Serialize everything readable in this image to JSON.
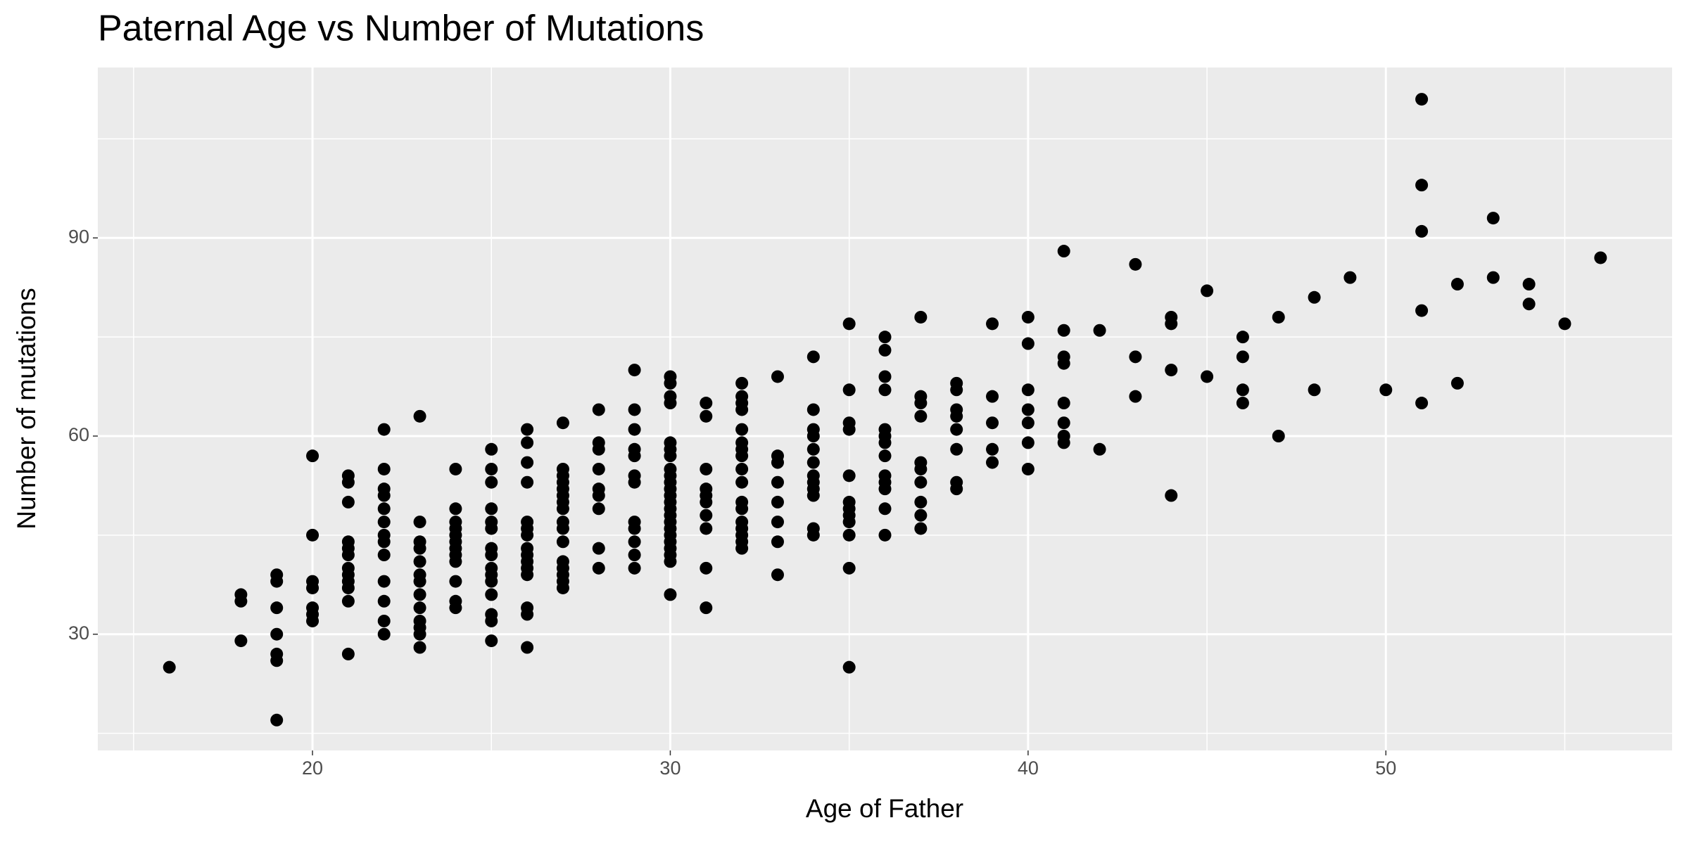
{
  "chart_data": {
    "type": "scatter",
    "title": "Paternal Age vs Number of Mutations",
    "x_label": "Age of Father",
    "y_label": "Number of mutations",
    "series": [
      {
        "color": "#000000",
        "x": [
          16,
          18,
          18,
          18,
          19,
          19,
          19,
          19,
          19,
          19,
          19,
          20,
          20,
          20,
          20,
          20,
          20,
          20,
          21,
          21,
          21,
          21,
          21,
          21,
          21,
          21,
          21,
          21,
          21,
          21,
          22,
          22,
          22,
          22,
          22,
          22,
          22,
          22,
          22,
          22,
          22,
          22,
          22,
          23,
          23,
          23,
          23,
          23,
          23,
          23,
          23,
          23,
          23,
          23,
          23,
          23,
          24,
          24,
          24,
          24,
          24,
          24,
          24,
          24,
          24,
          24,
          24,
          24,
          25,
          25,
          25,
          25,
          25,
          25,
          25,
          25,
          25,
          25,
          25,
          25,
          25,
          25,
          25,
          26,
          26,
          26,
          26,
          26,
          26,
          26,
          26,
          26,
          26,
          26,
          26,
          26,
          26,
          26,
          27,
          27,
          27,
          27,
          27,
          27,
          27,
          27,
          27,
          27,
          27,
          27,
          27,
          27,
          27,
          27,
          28,
          28,
          28,
          28,
          28,
          28,
          28,
          28,
          28,
          29,
          29,
          29,
          29,
          29,
          29,
          29,
          29,
          29,
          29,
          29,
          29,
          30,
          30,
          30,
          30,
          30,
          30,
          30,
          30,
          30,
          30,
          30,
          30,
          30,
          30,
          30,
          30,
          30,
          30,
          30,
          30,
          30,
          30,
          30,
          31,
          31,
          31,
          31,
          31,
          31,
          31,
          31,
          31,
          31,
          32,
          32,
          32,
          32,
          32,
          32,
          32,
          32,
          32,
          32,
          32,
          32,
          32,
          32,
          32,
          32,
          32,
          33,
          33,
          33,
          33,
          33,
          33,
          33,
          33,
          34,
          34,
          34,
          34,
          34,
          34,
          34,
          34,
          34,
          34,
          34,
          34,
          35,
          35,
          35,
          35,
          35,
          35,
          35,
          35,
          35,
          35,
          35,
          35,
          36,
          36,
          36,
          36,
          36,
          36,
          36,
          36,
          36,
          36,
          36,
          36,
          36,
          37,
          37,
          37,
          37,
          37,
          37,
          37,
          37,
          37,
          37,
          38,
          38,
          38,
          38,
          38,
          38,
          38,
          38,
          39,
          39,
          39,
          39,
          39,
          40,
          40,
          40,
          40,
          40,
          40,
          40,
          41,
          41,
          41,
          41,
          41,
          41,
          41,
          41,
          42,
          42,
          43,
          43,
          43,
          44,
          44,
          44,
          44,
          45,
          45,
          46,
          46,
          46,
          46,
          47,
          47,
          48,
          48,
          49,
          50,
          51,
          51,
          51,
          51,
          51,
          52,
          52,
          53,
          53,
          54,
          54,
          55,
          56
        ],
        "values": [
          25,
          36,
          35,
          29,
          39,
          38,
          34,
          30,
          27,
          26,
          17,
          57,
          45,
          38,
          37,
          34,
          33,
          32,
          54,
          53,
          50,
          44,
          43,
          42,
          40,
          39,
          38,
          37,
          35,
          27,
          61,
          55,
          52,
          51,
          49,
          47,
          45,
          44,
          42,
          38,
          35,
          32,
          30,
          63,
          47,
          44,
          43,
          41,
          39,
          38,
          36,
          34,
          32,
          31,
          30,
          28,
          55,
          49,
          47,
          46,
          45,
          44,
          43,
          42,
          41,
          38,
          35,
          34,
          58,
          55,
          53,
          49,
          47,
          46,
          43,
          42,
          40,
          39,
          38,
          36,
          33,
          32,
          29,
          61,
          59,
          56,
          53,
          47,
          46,
          45,
          43,
          42,
          41,
          40,
          39,
          34,
          33,
          28,
          62,
          55,
          54,
          53,
          52,
          51,
          50,
          49,
          47,
          46,
          44,
          41,
          40,
          39,
          38,
          37,
          64,
          59,
          58,
          55,
          52,
          51,
          49,
          43,
          40,
          70,
          64,
          61,
          58,
          57,
          54,
          53,
          47,
          46,
          44,
          42,
          40,
          69,
          68,
          66,
          65,
          59,
          58,
          57,
          55,
          54,
          53,
          52,
          51,
          50,
          49,
          48,
          47,
          46,
          45,
          44,
          43,
          42,
          41,
          36,
          65,
          63,
          55,
          52,
          51,
          50,
          48,
          46,
          40,
          34,
          68,
          66,
          65,
          64,
          61,
          59,
          58,
          57,
          55,
          53,
          50,
          49,
          47,
          46,
          45,
          44,
          43,
          69,
          57,
          56,
          53,
          50,
          47,
          44,
          39,
          72,
          64,
          61,
          60,
          58,
          56,
          54,
          53,
          52,
          51,
          46,
          45,
          77,
          67,
          62,
          61,
          54,
          50,
          49,
          48,
          47,
          45,
          40,
          25,
          75,
          73,
          69,
          67,
          61,
          60,
          59,
          57,
          54,
          53,
          52,
          49,
          45,
          78,
          66,
          65,
          63,
          56,
          55,
          53,
          50,
          48,
          46,
          68,
          67,
          64,
          63,
          61,
          58,
          53,
          52,
          77,
          66,
          62,
          58,
          56,
          78,
          74,
          67,
          64,
          62,
          59,
          55,
          88,
          76,
          72,
          71,
          65,
          62,
          60,
          59,
          76,
          58,
          86,
          72,
          66,
          78,
          77,
          70,
          51,
          82,
          69,
          75,
          72,
          67,
          65,
          78,
          60,
          81,
          67,
          84,
          67,
          111,
          98,
          91,
          79,
          65,
          83,
          68,
          93,
          84,
          83,
          80,
          77,
          87
        ]
      }
    ],
    "xlim": [
      14,
      58
    ],
    "xticks": [
      20,
      30,
      40,
      50
    ],
    "ylim": [
      12.4,
      115.8
    ],
    "yticks": [
      30,
      60,
      90
    ],
    "grid": true,
    "minor_grid": true,
    "panel_color": "#ebebeb"
  }
}
